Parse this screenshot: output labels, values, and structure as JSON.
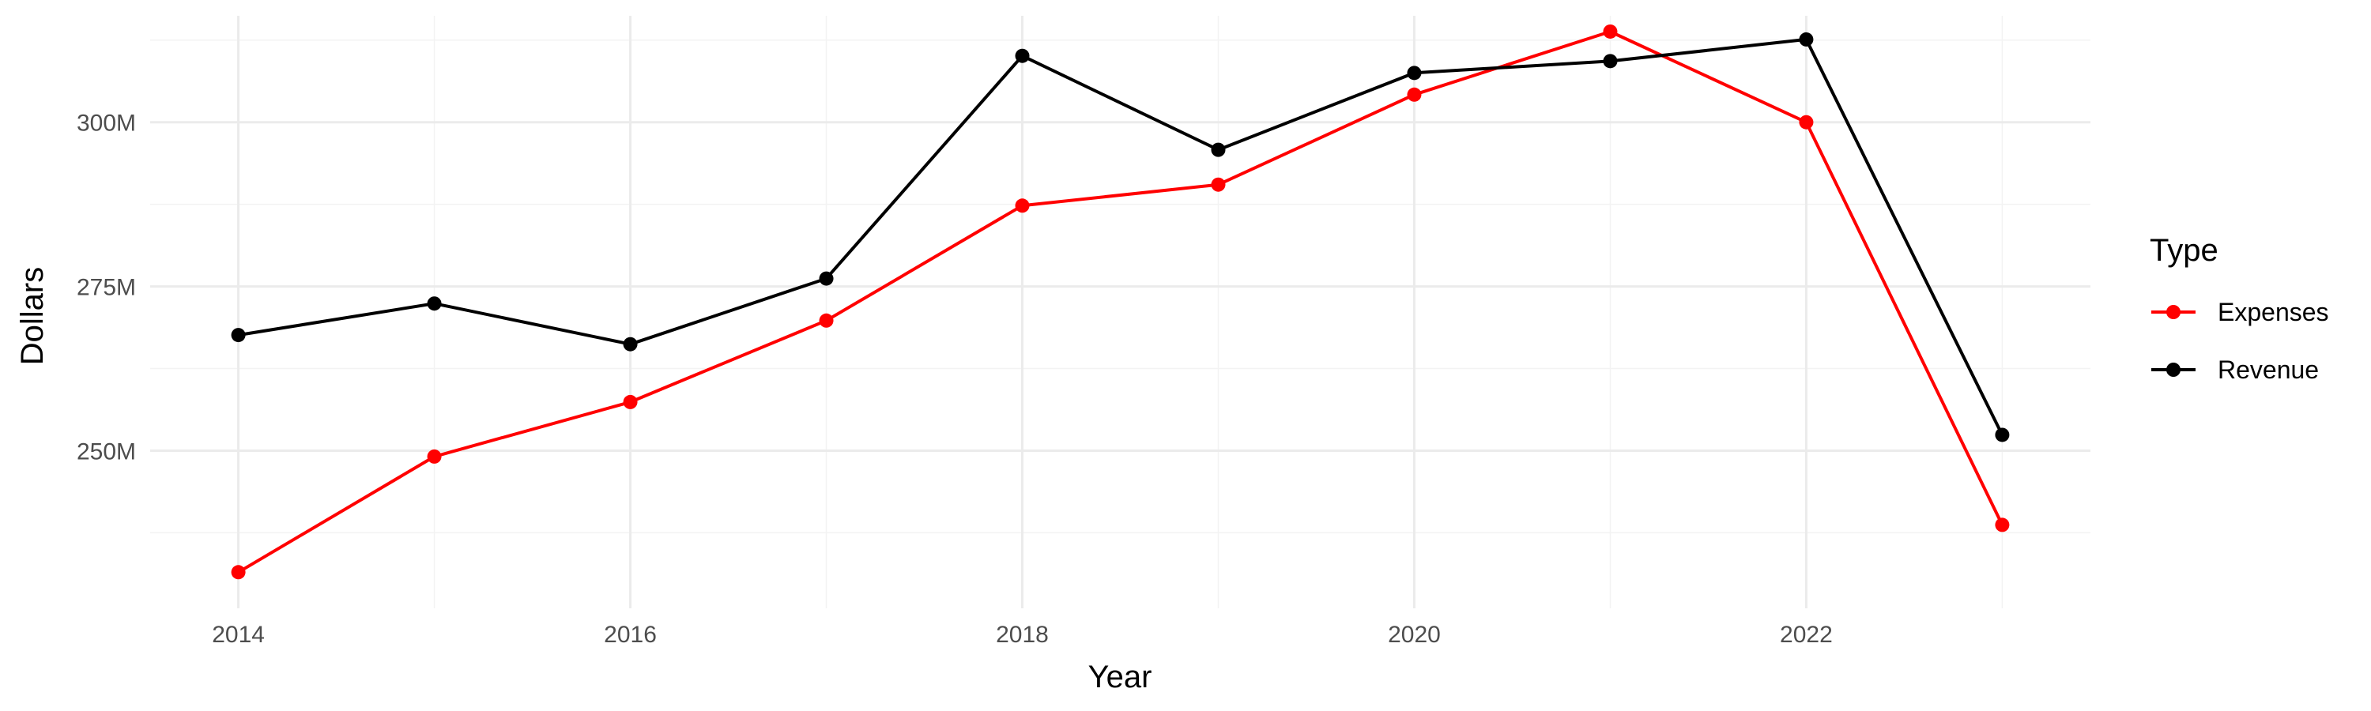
{
  "chart_data": {
    "type": "line",
    "xlabel": "Year",
    "ylabel": "Dollars",
    "x": [
      2014,
      2015,
      2016,
      2017,
      2018,
      2019,
      2020,
      2021,
      2022,
      2023
    ],
    "x_ticks": [
      2014,
      2016,
      2018,
      2020,
      2022
    ],
    "x_tick_labels": [
      "2014",
      "2016",
      "2018",
      "2020",
      "2022"
    ],
    "xlim": [
      2013.55,
      2023.45
    ],
    "y_ticks": [
      250,
      275,
      300
    ],
    "y_tick_labels": [
      "250M",
      "275M",
      "300M"
    ],
    "ylim": [
      226.0,
      316.2
    ],
    "grid": true,
    "legend": {
      "title": "Type",
      "position": "right"
    },
    "series": [
      {
        "name": "Expenses",
        "color": "#ff0000",
        "values": [
          231.5,
          249.1,
          257.4,
          269.8,
          287.3,
          290.5,
          304.2,
          313.8,
          300.0,
          238.7
        ]
      },
      {
        "name": "Revenue",
        "color": "#000000",
        "values": [
          267.6,
          272.4,
          266.2,
          276.2,
          310.1,
          295.8,
          307.5,
          309.3,
          312.6,
          252.4
        ]
      }
    ]
  }
}
